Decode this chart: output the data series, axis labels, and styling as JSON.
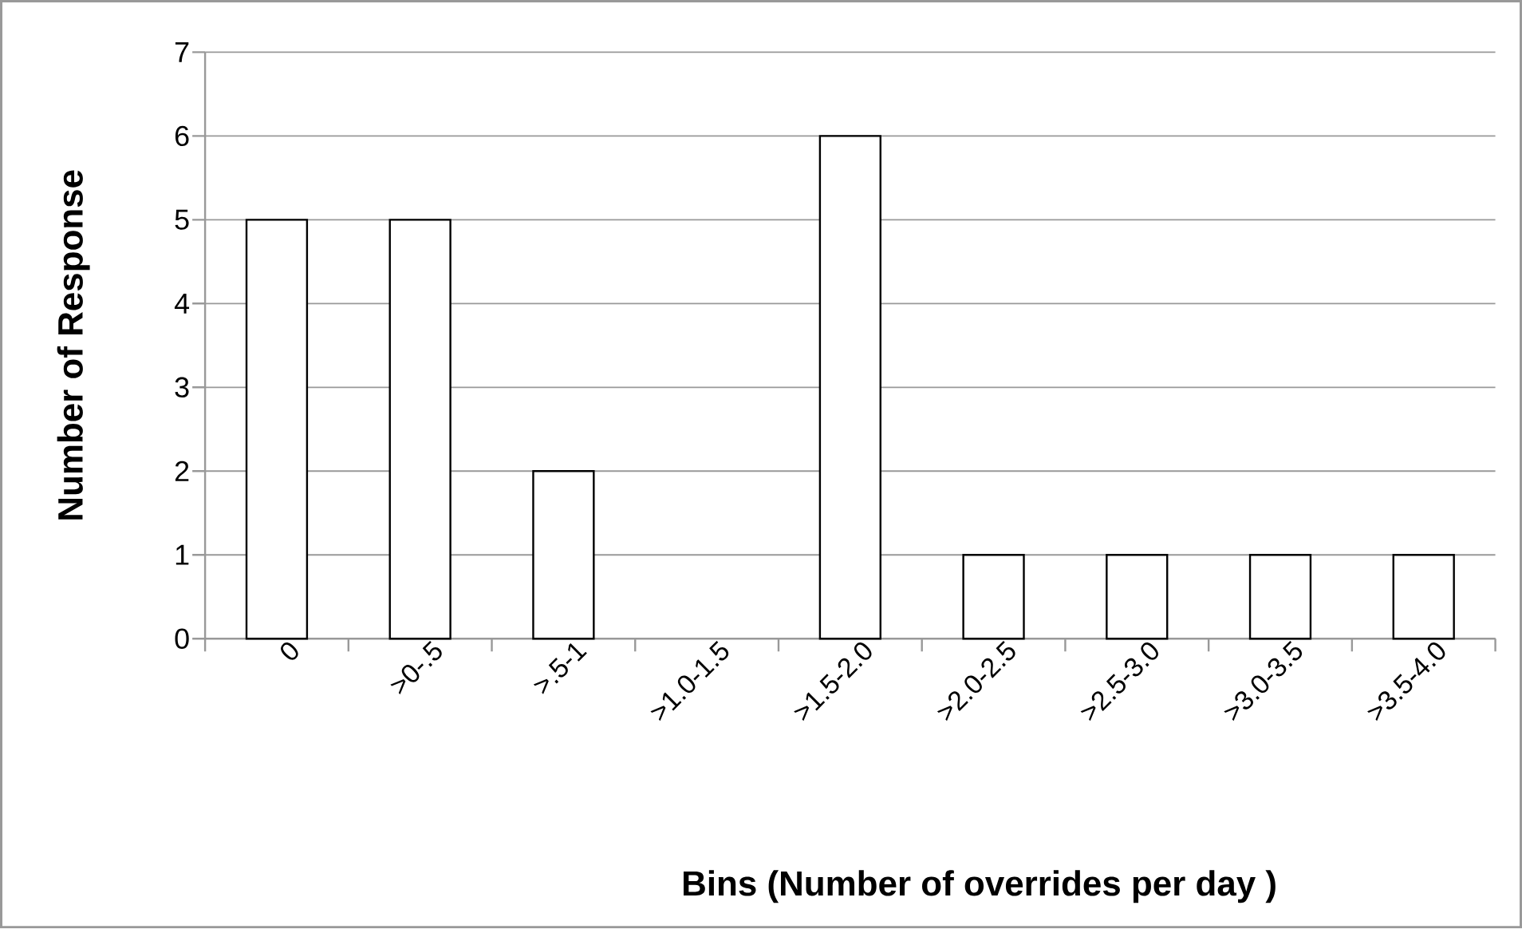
{
  "chart_data": {
    "type": "bar",
    "categories": [
      "0",
      ">0-.5",
      ">.5-1",
      ">1.0-1.5",
      ">1.5-2.0",
      ">2.0-2.5",
      ">2.5-3.0",
      ">3.0-3.5",
      ">3.5-4.0"
    ],
    "values": [
      5,
      5,
      2,
      0,
      6,
      1,
      1,
      1,
      1
    ],
    "color": "#ffffff",
    "xlabel": "Bins (Number of overrides per day )",
    "ylabel": "Number of Response",
    "ylim": [
      0,
      7
    ],
    "yticks": [
      0,
      1,
      2,
      3,
      4,
      5,
      6,
      7
    ],
    "grid": "y"
  }
}
